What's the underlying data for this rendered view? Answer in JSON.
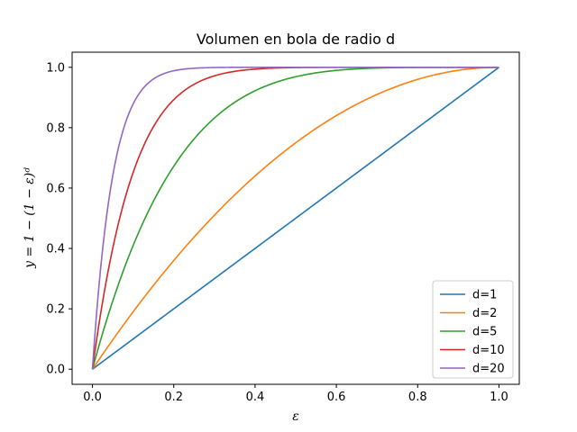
{
  "chart_data": {
    "type": "line",
    "title": "Volumen en bola de radio d",
    "xlabel": "ε",
    "ylabel": "y = 1 − (1 − ε)ᵈ",
    "xlim": [
      -0.05,
      1.05
    ],
    "ylim": [
      -0.05,
      1.05
    ],
    "xticks": [
      "0.0",
      "0.2",
      "0.4",
      "0.6",
      "0.8",
      "1.0"
    ],
    "yticks": [
      "0.0",
      "0.2",
      "0.4",
      "0.6",
      "0.8",
      "1.0"
    ],
    "grid": false,
    "legend_position": "lower-right",
    "x": [
      0.0,
      0.05,
      0.1,
      0.15,
      0.2,
      0.3,
      0.4,
      0.5,
      0.6,
      0.7,
      0.8,
      0.9,
      1.0
    ],
    "series": [
      {
        "name": "d=1",
        "color": "#1f77b4",
        "values": [
          0.0,
          0.05,
          0.1,
          0.15,
          0.2,
          0.3,
          0.4,
          0.5,
          0.6,
          0.7,
          0.8,
          0.9,
          1.0
        ]
      },
      {
        "name": "d=2",
        "color": "#ff7f0e",
        "values": [
          0.0,
          0.0975,
          0.19,
          0.2775,
          0.36,
          0.51,
          0.64,
          0.75,
          0.84,
          0.91,
          0.96,
          0.99,
          1.0
        ]
      },
      {
        "name": "d=5",
        "color": "#2ca02c",
        "values": [
          0.0,
          0.2262,
          0.4095,
          0.5563,
          0.6723,
          0.8319,
          0.9222,
          0.9688,
          0.9898,
          0.9976,
          0.9997,
          1.0,
          1.0
        ]
      },
      {
        "name": "d=10",
        "color": "#d62728",
        "values": [
          0.0,
          0.4013,
          0.6513,
          0.8031,
          0.8926,
          0.9718,
          0.994,
          0.999,
          0.9999,
          1.0,
          1.0,
          1.0,
          1.0
        ]
      },
      {
        "name": "d=20",
        "color": "#9467bd",
        "values": [
          0.0,
          0.6415,
          0.8784,
          0.9612,
          0.9885,
          0.9992,
          1.0,
          1.0,
          1.0,
          1.0,
          1.0,
          1.0,
          1.0
        ]
      }
    ]
  }
}
